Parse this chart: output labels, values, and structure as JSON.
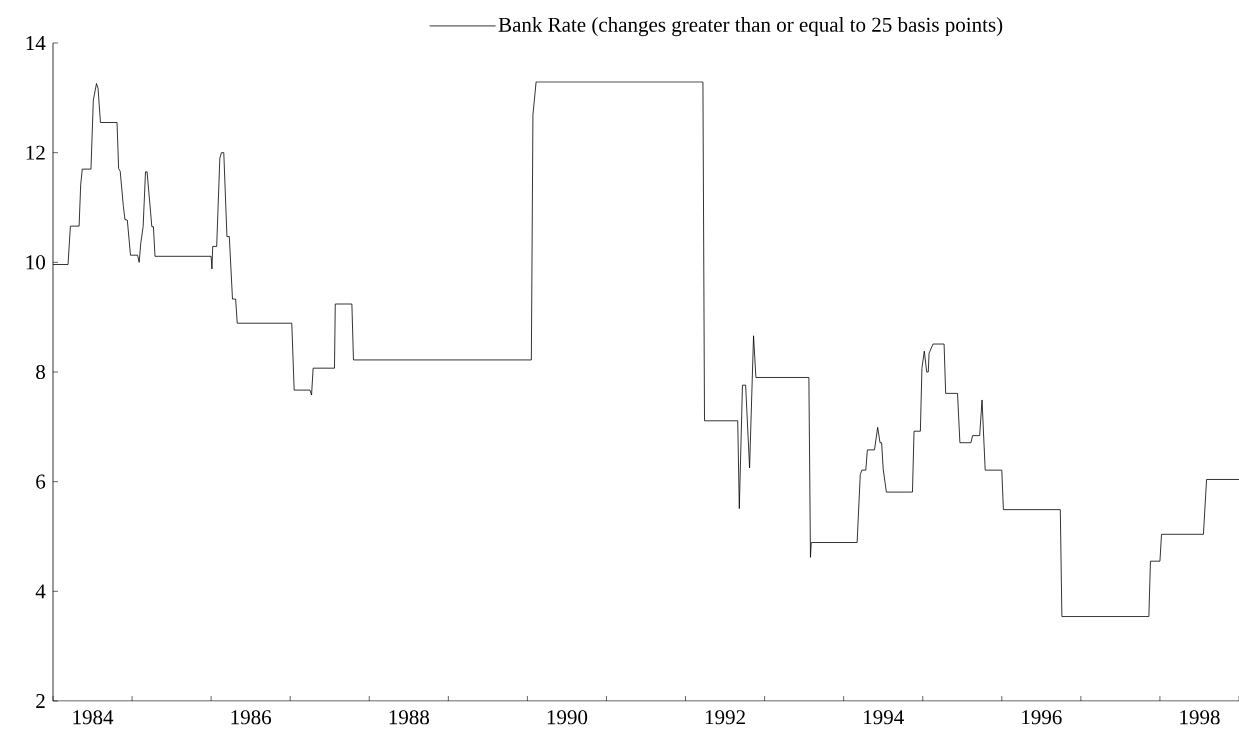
{
  "chart_data": {
    "type": "line",
    "x": [
      1984.0,
      1984.19,
      1984.22,
      1984.33,
      1984.35,
      1984.37,
      1984.48,
      1984.51,
      1984.55,
      1984.57,
      1984.6,
      1984.81,
      1984.83,
      1984.85,
      1984.89,
      1984.91,
      1984.94,
      1984.98,
      1985.07,
      1985.09,
      1985.11,
      1985.14,
      1985.17,
      1985.19,
      1985.25,
      1985.27,
      1985.29,
      1986.0,
      1986.01,
      1986.02,
      1986.07,
      1986.11,
      1986.13,
      1986.16,
      1986.2,
      1986.23,
      1986.27,
      1986.31,
      1986.33,
      1987.02,
      1987.05,
      1987.25,
      1987.27,
      1987.29,
      1987.56,
      1987.57,
      1987.78,
      1987.8,
      1990.05,
      1990.07,
      1990.11,
      1992.22,
      1992.24,
      1992.66,
      1992.68,
      1992.72,
      1992.76,
      1992.81,
      1992.86,
      1992.89,
      1993.56,
      1993.58,
      1993.59,
      1994.17,
      1994.21,
      1994.23,
      1994.28,
      1994.3,
      1994.39,
      1994.43,
      1994.46,
      1994.48,
      1994.5,
      1994.54,
      1994.87,
      1994.89,
      1994.97,
      1994.99,
      1995.02,
      1995.05,
      1995.07,
      1995.08,
      1995.13,
      1995.27,
      1995.29,
      1995.44,
      1995.47,
      1995.61,
      1995.63,
      1995.72,
      1995.75,
      1995.79,
      1996.0,
      1996.02,
      1996.74,
      1996.76,
      1997.86,
      1997.88,
      1998.0,
      1998.02,
      1998.55,
      1998.59,
      1999.0
    ],
    "series": [
      {
        "name": "Bank Rate (changes greater than or equal to 25 basis points)",
        "color": "#000000",
        "values": [
          9.96,
          9.96,
          10.66,
          10.66,
          11.41,
          11.7,
          11.7,
          12.96,
          13.26,
          13.17,
          12.55,
          12.55,
          11.71,
          11.66,
          11.02,
          10.78,
          10.77,
          10.13,
          10.13,
          10.0,
          10.35,
          10.65,
          11.65,
          11.65,
          10.65,
          10.65,
          10.11,
          10.11,
          9.88,
          10.29,
          10.29,
          11.9,
          12.0,
          12.0,
          10.47,
          10.47,
          9.33,
          9.33,
          8.89,
          8.89,
          7.67,
          7.67,
          7.58,
          8.07,
          8.07,
          9.24,
          9.24,
          8.22,
          8.22,
          12.69,
          13.29,
          13.29,
          7.11,
          7.11,
          5.51,
          7.76,
          7.76,
          6.25,
          8.66,
          7.9,
          7.9,
          4.62,
          4.89,
          4.89,
          6.13,
          6.21,
          6.21,
          6.58,
          6.58,
          6.99,
          6.71,
          6.71,
          6.23,
          5.81,
          5.81,
          6.92,
          6.92,
          8.07,
          8.38,
          8.0,
          8.0,
          8.34,
          8.51,
          8.51,
          7.61,
          7.61,
          6.71,
          6.71,
          6.84,
          6.84,
          7.49,
          6.21,
          6.21,
          5.49,
          5.49,
          3.54,
          3.54,
          4.55,
          4.55,
          5.04,
          5.04,
          6.04,
          6.04
        ]
      }
    ],
    "xlim": [
      1984,
      1999
    ],
    "xticks": [
      {
        "value": 1984,
        "label": null
      },
      {
        "value": 1984.5,
        "label": "1984"
      },
      {
        "value": 1985,
        "label": null
      },
      {
        "value": 1986,
        "label": null
      },
      {
        "value": 1986.5,
        "label": "1986"
      },
      {
        "value": 1987,
        "label": null
      },
      {
        "value": 1988,
        "label": null
      },
      {
        "value": 1988.5,
        "label": "1988"
      },
      {
        "value": 1989,
        "label": null
      },
      {
        "value": 1990,
        "label": null
      },
      {
        "value": 1990.5,
        "label": "1990"
      },
      {
        "value": 1991,
        "label": null
      },
      {
        "value": 1992,
        "label": null
      },
      {
        "value": 1992.5,
        "label": "1992"
      },
      {
        "value": 1993,
        "label": null
      },
      {
        "value": 1994,
        "label": null
      },
      {
        "value": 1994.5,
        "label": "1994"
      },
      {
        "value": 1995,
        "label": null
      },
      {
        "value": 1996,
        "label": null
      },
      {
        "value": 1996.5,
        "label": "1996"
      },
      {
        "value": 1997,
        "label": null
      },
      {
        "value": 1998,
        "label": null
      },
      {
        "value": 1998.5,
        "label": "1998"
      },
      {
        "value": 1999,
        "label": null
      }
    ],
    "ylim": [
      2,
      14
    ],
    "yticks": [
      2,
      4,
      6,
      8,
      10,
      12,
      14
    ],
    "legend": "top",
    "marker": "none",
    "line_style": "solid"
  }
}
